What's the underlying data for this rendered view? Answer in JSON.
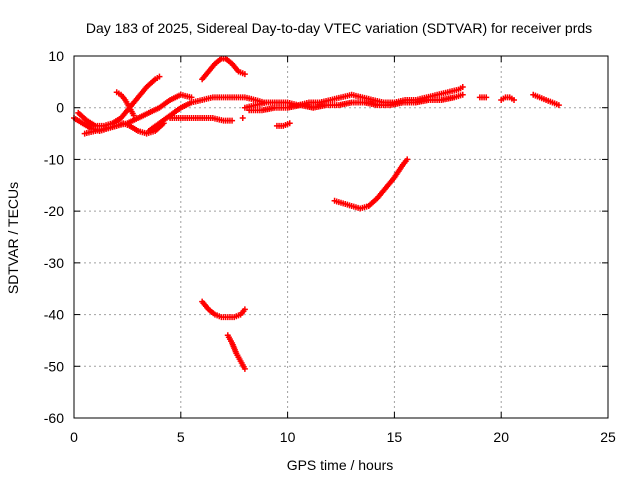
{
  "chart_data": {
    "type": "scatter",
    "title": "Day 183 of 2025, Sidereal Day-to-day VTEC variation (SDTVAR) for receiver prds",
    "xlabel": "GPS time / hours",
    "ylabel": "SDTVAR / TECUs",
    "xlim": [
      0,
      25
    ],
    "ylim": [
      -60,
      10
    ],
    "xticks": [
      0,
      5,
      10,
      15,
      20,
      25
    ],
    "yticks": [
      10,
      0,
      -10,
      -20,
      -30,
      -40,
      -50,
      -60
    ],
    "grid": true,
    "marker": "plus",
    "color": "#ff0000",
    "series": [
      {
        "x": [
          0.0,
          0.4,
          0.8,
          1.2,
          1.6,
          2.0,
          2.3,
          2.6,
          3.0,
          3.4,
          3.8,
          4.2
        ],
        "y": [
          -2.0,
          -3.0,
          -4.0,
          -4.5,
          -4.0,
          -3.5,
          -3.0,
          -3.5,
          -4.5,
          -5.0,
          -4.5,
          -3.0
        ]
      },
      {
        "x": [
          0.2,
          0.6,
          1.0,
          1.4,
          1.8,
          2.2,
          2.6,
          3.0,
          3.4,
          3.8,
          4.0
        ],
        "y": [
          -1.0,
          -2.5,
          -3.5,
          -3.5,
          -3.0,
          -2.0,
          0.0,
          2.0,
          4.0,
          5.5,
          6.0
        ]
      },
      {
        "x": [
          2.0,
          2.2,
          2.4,
          2.6,
          2.8
        ],
        "y": [
          3.0,
          2.5,
          1.5,
          0.0,
          -1.5
        ]
      },
      {
        "x": [
          0.5,
          1.0,
          1.5,
          2.0,
          2.5,
          3.0,
          3.5,
          4.0,
          4.5,
          5.0,
          5.5
        ],
        "y": [
          -5.0,
          -4.5,
          -4.0,
          -3.5,
          -3.0,
          -2.0,
          -1.0,
          0.0,
          1.5,
          2.5,
          2.0
        ]
      },
      {
        "x": [
          3.5,
          4.0,
          4.5,
          5.0,
          5.5,
          6.0,
          6.5,
          7.0,
          7.5,
          8.0,
          8.5,
          8.9
        ],
        "y": [
          -4.5,
          -3.0,
          -1.5,
          0.0,
          1.0,
          1.5,
          2.0,
          2.0,
          2.0,
          2.0,
          1.5,
          1.0
        ]
      },
      {
        "x": [
          4.5,
          5.0,
          5.5,
          6.0,
          6.5,
          7.0,
          7.4
        ],
        "y": [
          -2.0,
          -2.0,
          -2.0,
          -2.0,
          -2.0,
          -2.5,
          -2.5
        ]
      },
      {
        "x": [
          6.0,
          6.3,
          6.6,
          6.9,
          7.1,
          7.4,
          7.7,
          8.0
        ],
        "y": [
          5.5,
          7.0,
          8.5,
          9.5,
          9.5,
          8.5,
          7.0,
          6.5
        ]
      },
      {
        "x": [
          8.0,
          8.5,
          9.0,
          9.5,
          10.0,
          10.5,
          11.0,
          11.5,
          12.0,
          12.5,
          13.0,
          13.5,
          14.0,
          14.5,
          15.0,
          15.5,
          16.0,
          16.5,
          17.0,
          17.5,
          18.0,
          18.2
        ],
        "y": [
          0.0,
          0.5,
          1.0,
          1.0,
          1.0,
          0.5,
          1.0,
          1.0,
          1.5,
          2.0,
          2.5,
          2.0,
          1.5,
          1.0,
          1.0,
          1.5,
          1.5,
          2.0,
          2.5,
          3.0,
          3.5,
          4.0
        ]
      },
      {
        "x": [
          8.2,
          8.8,
          9.4,
          10.0,
          10.6,
          11.2,
          11.8,
          12.4,
          13.0,
          13.6,
          14.2,
          14.8,
          15.4,
          16.0,
          16.6,
          17.2,
          17.8,
          18.2
        ],
        "y": [
          -0.5,
          -0.5,
          0.0,
          0.0,
          0.5,
          0.0,
          0.5,
          0.5,
          1.0,
          1.0,
          0.5,
          0.5,
          1.0,
          1.0,
          1.5,
          1.5,
          2.0,
          2.5
        ]
      },
      {
        "x": [
          9.5,
          9.8,
          10.1
        ],
        "y": [
          -3.5,
          -3.5,
          -3.0
        ]
      },
      {
        "x": [
          7.9
        ],
        "y": [
          -2.0
        ]
      },
      {
        "x": [
          19.0,
          19.3
        ],
        "y": [
          2.0,
          2.0
        ]
      },
      {
        "x": [
          20.0,
          20.2,
          20.4,
          20.6
        ],
        "y": [
          1.5,
          2.0,
          2.0,
          1.5
        ]
      },
      {
        "x": [
          21.5,
          21.8,
          22.1,
          22.4,
          22.7
        ],
        "y": [
          2.5,
          2.0,
          1.5,
          1.0,
          0.5
        ]
      },
      {
        "x": [
          12.2,
          12.6,
          13.0,
          13.4,
          13.8,
          14.2,
          14.6,
          15.0,
          15.4,
          15.6
        ],
        "y": [
          -18.0,
          -18.5,
          -19.0,
          -19.5,
          -19.0,
          -17.5,
          -15.5,
          -13.5,
          -11.0,
          -10.0
        ]
      },
      {
        "x": [
          6.0,
          6.3,
          6.6,
          6.9,
          7.2,
          7.5,
          7.8,
          8.0
        ],
        "y": [
          -37.5,
          -39.0,
          -40.0,
          -40.5,
          -40.5,
          -40.5,
          -40.0,
          -39.0
        ]
      },
      {
        "x": [
          7.2,
          7.4,
          7.6,
          7.8,
          8.0
        ],
        "y": [
          -44.0,
          -45.5,
          -47.5,
          -49.0,
          -50.5
        ]
      }
    ]
  }
}
